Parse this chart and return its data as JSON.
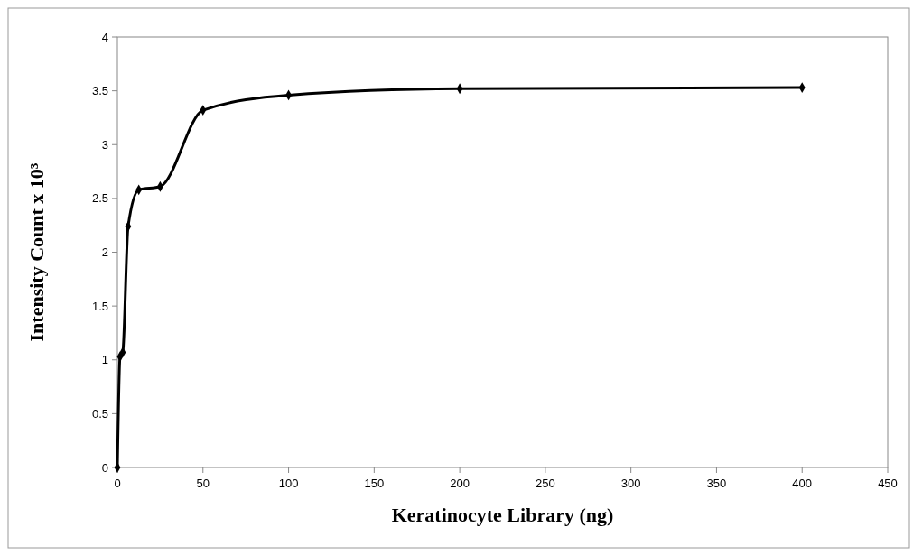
{
  "chart_data": {
    "type": "line",
    "xlabel": "Keratinocyte Library (ng)",
    "ylabel": "Intensity Count x 10³",
    "series": [
      {
        "color": "#000000",
        "x": [
          0,
          1.56,
          3.125,
          6.25,
          12.5,
          25,
          50,
          100,
          200,
          400
        ],
        "values": [
          0,
          1.03,
          1.07,
          2.24,
          2.58,
          2.61,
          3.32,
          3.46,
          3.52,
          3.53
        ]
      }
    ],
    "xlim": [
      0,
      450
    ],
    "xticks": [
      0,
      50,
      100,
      150,
      200,
      250,
      300,
      350,
      400,
      450
    ],
    "ylim": [
      0,
      4
    ],
    "yticks": [
      0,
      {
        "value": 0.5,
        "label": "0.5"
      },
      1,
      {
        "value": 1.5,
        "label": "1.5"
      },
      2,
      {
        "value": 2.5,
        "label": "2.5"
      },
      3,
      {
        "value": 3.5,
        "label": "3.5"
      },
      4
    ],
    "grid": false,
    "marker": "diamond",
    "line_style": "solid"
  }
}
